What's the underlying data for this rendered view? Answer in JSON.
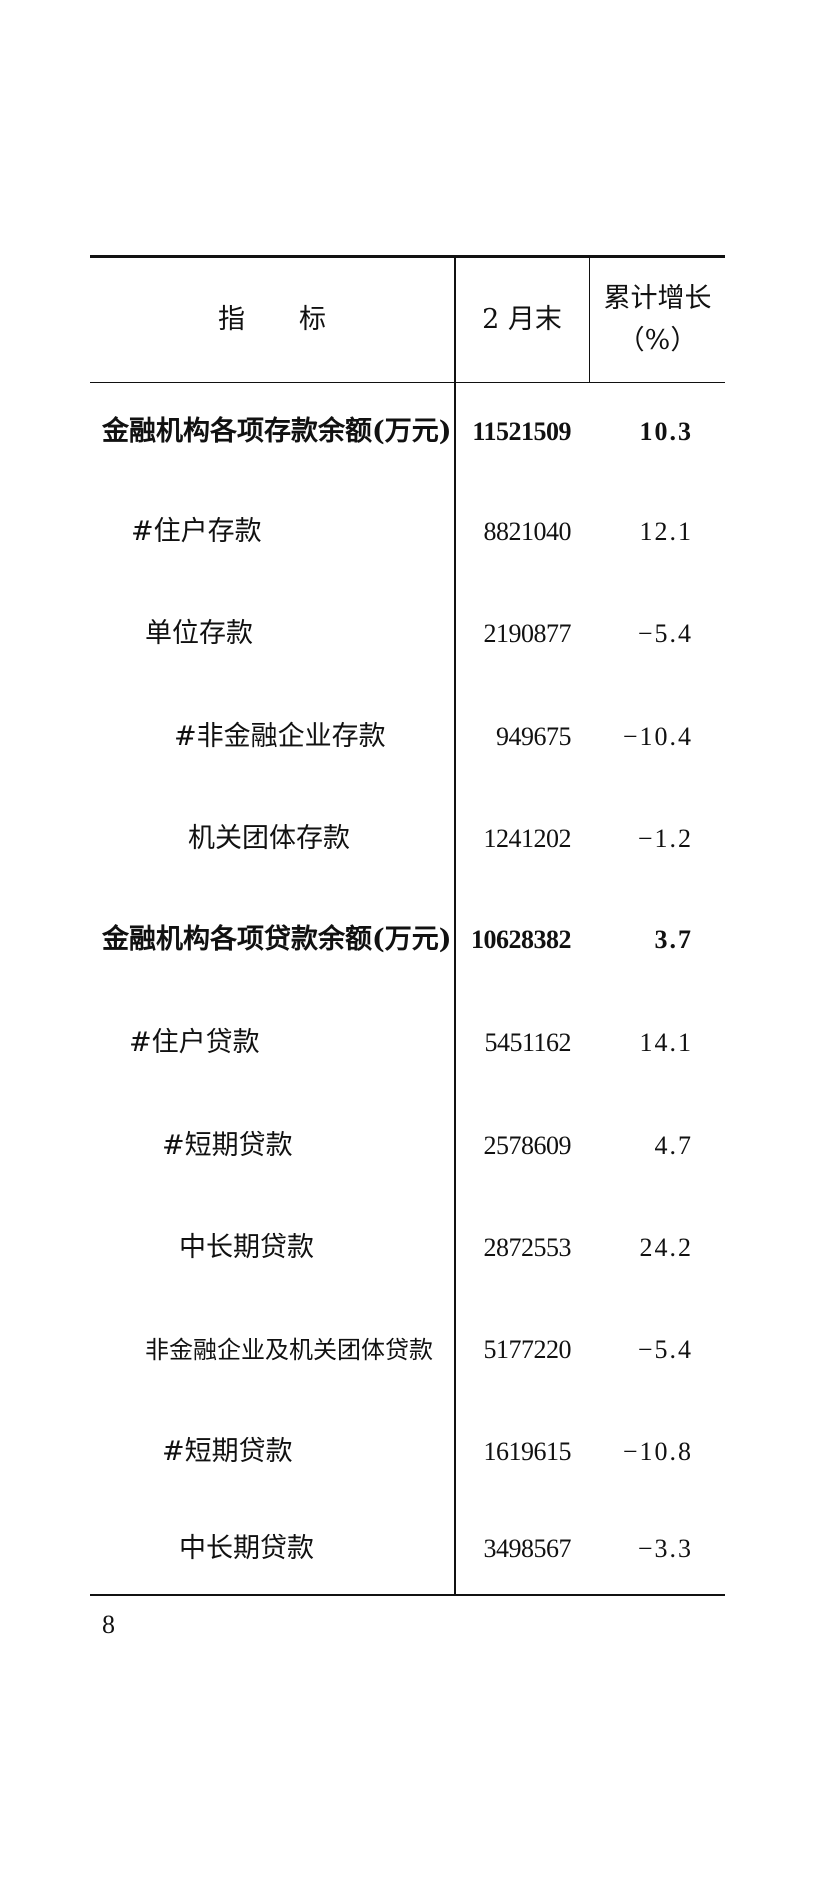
{
  "table": {
    "headers": [
      "指　　标",
      "2 月末",
      "累计增长",
      "（%）"
    ],
    "rows": [
      {
        "name": "金融机构各项存款余额(万元)",
        "value": "11521509",
        "growth": "10.3",
        "bold": true
      },
      {
        "name": "#住户存款",
        "value": "8821040",
        "growth": "12.1"
      },
      {
        "name": "单位存款",
        "value": "2190877",
        "growth": "−5.4"
      },
      {
        "name": "#非金融企业存款",
        "value": "949675",
        "growth": "−10.4"
      },
      {
        "name": "机关团体存款",
        "value": "1241202",
        "growth": "−1.2"
      },
      {
        "name": "金融机构各项贷款余额(万元)",
        "value": "10628382",
        "growth": "3.7",
        "bold": true
      },
      {
        "name": "#住户贷款",
        "value": "5451162",
        "growth": "14.1"
      },
      {
        "name": "#短期贷款",
        "value": "2578609",
        "growth": "4.7"
      },
      {
        "name": "中长期贷款",
        "value": "2872553",
        "growth": "24.2"
      },
      {
        "name": "非金融企业及机关团体贷款",
        "value": "5177220",
        "growth": "−5.4"
      },
      {
        "name": "#短期贷款",
        "value": "1619615",
        "growth": "−10.8"
      },
      {
        "name": "中长期贷款",
        "value": "3498567",
        "growth": "−3.3"
      }
    ]
  },
  "page_number": "8"
}
